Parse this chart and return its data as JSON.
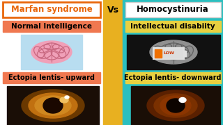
{
  "left_bg": "#ffffff",
  "right_bg": "#2bbfbf",
  "vs_bg": "#e8b020",
  "left_title": "Marfan syndrome",
  "left_title_color": "#e8660a",
  "left_title_bg": "#ffffff",
  "left_title_border": "#e8660a",
  "vs_text": "Vs",
  "vs_color": "#000000",
  "right_title": "Homocystinuria",
  "right_title_color": "#000000",
  "right_title_bg": "#ffffff",
  "left_label1": "Normal Intelligence",
  "left_label1_bg": "#f07850",
  "left_label2": "Ectopia lentis- upward",
  "left_label2_bg": "#f07850",
  "right_label1": "Intellectual disabiity",
  "right_label1_bg": "#e8d040",
  "right_label2": "Ectopia lentis- downward",
  "right_label2_bg": "#e8d040",
  "label_text_color": "#000000",
  "brain_left_bg": "#b8ddf0",
  "brain_left_color": "#f0a0b8",
  "brain_left_fold": "#c86880",
  "brain_right_bg": "#111111",
  "brain_right_color": "#909090",
  "brain_right_fold": "#606060",
  "eye_left_bg": "#1a0e06",
  "eye_right_bg": "#1a0e06"
}
